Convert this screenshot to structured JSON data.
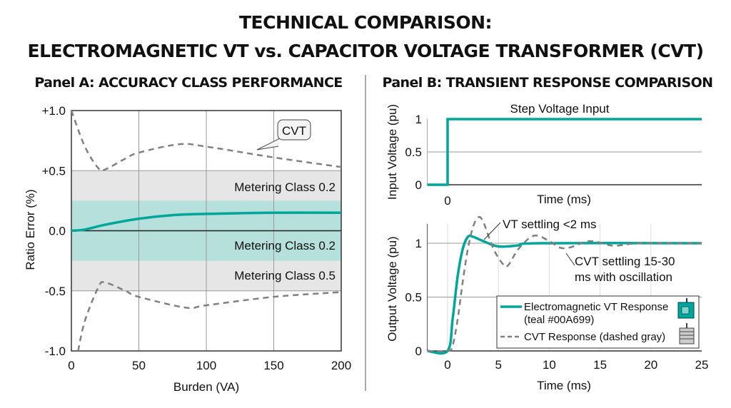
{
  "title_line1": "TECHNICAL COMPARISON:",
  "title_line2": "ELECTROMAGNETIC VT vs. CAPACITOR VOLTAGE TRANSFORMER (CVT)",
  "colors": {
    "teal": "#00A699",
    "teal_band": "#b5e0dc",
    "gray_band": "#e6e6e6",
    "cvt_gray": "#808080"
  },
  "chart_data": [
    {
      "type": "line",
      "title": "Panel A: ACCURACY CLASS PERFORMANCE",
      "xlabel": "Burden (VA)",
      "ylabel": "Ratio Error (%)",
      "xlim": [
        0,
        200
      ],
      "ylim": [
        -1.0,
        1.0
      ],
      "xticks": [
        "0",
        "50",
        "100",
        "150",
        "200"
      ],
      "yticks": [
        "+1.0",
        "+0.5",
        "0.0",
        "-0.5",
        "-1.0"
      ],
      "grid": true,
      "bands": [
        {
          "label": "Metering Class 0.5",
          "range": [
            -0.5,
            0.5
          ],
          "color": "#e6e6e6"
        },
        {
          "label": "Metering Class 0.2",
          "range": [
            -0.25,
            0.25
          ],
          "color": "#b5e0dc"
        }
      ],
      "band_labels": [
        "Metering Class 0.2",
        "Metering Class 0.2",
        "Metering Class 0.5"
      ],
      "annotations": [
        "CVT"
      ],
      "series": [
        {
          "style": "solid teal",
          "x": [
            0,
            10,
            25,
            50,
            75,
            100,
            150,
            200
          ],
          "y": [
            0,
            0.01,
            0.05,
            0.1,
            0.13,
            0.14,
            0.15,
            0.15
          ]
        },
        {
          "style": "dashed gray",
          "x": [
            0,
            10,
            20,
            25,
            40,
            50,
            80,
            100,
            150,
            200
          ],
          "y": [
            1.0,
            0.7,
            0.52,
            0.51,
            0.6,
            0.65,
            0.72,
            0.7,
            0.61,
            0.53
          ]
        },
        {
          "style": "dashed gray",
          "x": [
            5,
            10,
            20,
            25,
            40,
            50,
            85,
            100,
            150,
            200
          ],
          "y": [
            -1.0,
            -0.75,
            -0.47,
            -0.43,
            -0.5,
            -0.55,
            -0.64,
            -0.62,
            -0.55,
            -0.51
          ]
        }
      ]
    },
    {
      "type": "line",
      "title": "Panel B: TRANSIENT RESPONSE COMPARISON",
      "subtitle": "Step Voltage Input",
      "xlabel": "Time (ms)",
      "ylabel": "Input Voltage (pu)",
      "xlim": [
        -2,
        25
      ],
      "ylim": [
        0,
        1
      ],
      "xticks": [
        "0"
      ],
      "yticks": [
        "1",
        "0.5",
        "0"
      ],
      "series": [
        {
          "style": "solid teal",
          "x": [
            -2,
            0,
            0,
            25
          ],
          "y": [
            0,
            0,
            1,
            1
          ]
        }
      ]
    },
    {
      "type": "line",
      "xlabel": "Time (ms)",
      "ylabel": "Output Voltage (pu)",
      "xlim": [
        -2,
        25
      ],
      "ylim": [
        0,
        1.2
      ],
      "xticks": [
        "0",
        "5",
        "10",
        "15",
        "20",
        "25"
      ],
      "yticks": [
        "1",
        "0.5",
        "0"
      ],
      "grid": true,
      "annotations": [
        "VT settling <2 ms",
        "CVT settling 15-30",
        "ms with oscillation"
      ],
      "legend_position": "bottom-right",
      "series": [
        {
          "name": "Electromagnetic VT Response",
          "name_line2": "(teal #00A699)",
          "style": "solid teal",
          "icon": "vt-transformer-icon",
          "x": [
            -2,
            0,
            0.5,
            1,
            1.5,
            2,
            2.5,
            3.5,
            5,
            7,
            9,
            25
          ],
          "y": [
            0,
            0,
            0.3,
            0.7,
            0.95,
            1.06,
            1.06,
            1.02,
            0.97,
            0.98,
            1.0,
            1.0
          ]
        },
        {
          "name": "CVT Response (dashed gray)",
          "style": "dashed gray",
          "icon": "cvt-transformer-icon",
          "x": [
            -2,
            0,
            0.5,
            1,
            1.5,
            2,
            2.5,
            3,
            3.5,
            4.5,
            5.5,
            6,
            7,
            8.5,
            10,
            11,
            12,
            14,
            16,
            17,
            19,
            25
          ],
          "y": [
            0,
            0,
            0.05,
            0.3,
            0.65,
            0.95,
            1.15,
            1.24,
            1.2,
            0.95,
            0.8,
            0.8,
            0.95,
            1.07,
            1.02,
            0.96,
            0.96,
            1.02,
            0.98,
            0.98,
            1.0,
            1.0
          ]
        }
      ]
    }
  ]
}
